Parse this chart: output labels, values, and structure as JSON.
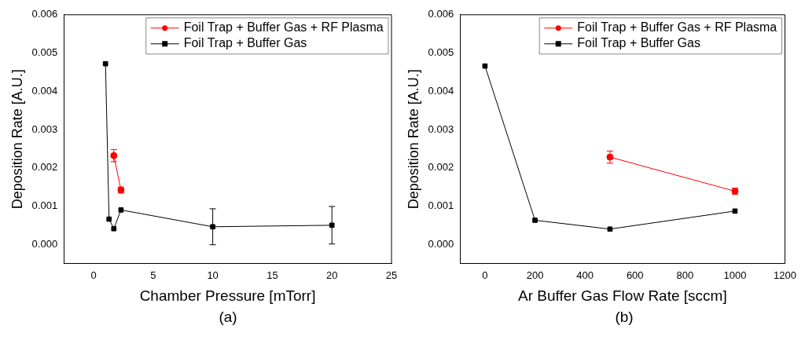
{
  "chart_data": [
    {
      "type": "line",
      "xlabel": "Chamber Pressure [mTorr]",
      "ylabel": "Deposition Rate [A.U.]",
      "xlim": [
        -2.5,
        25
      ],
      "xticks": [
        0,
        5,
        10,
        15,
        20,
        25
      ],
      "ylim": [
        -0.0005,
        0.006
      ],
      "yticks": [
        {
          "value": 0,
          "label": "0.000"
        },
        {
          "value": 0.001,
          "label": "0.001"
        },
        {
          "value": 0.002,
          "label": "0.002"
        },
        {
          "value": 0.003,
          "label": "0.003"
        },
        {
          "value": 0.004,
          "label": "0.004"
        },
        {
          "value": 0.005,
          "label": "0.005"
        },
        {
          "value": 0.006,
          "label": "0.006"
        }
      ],
      "legend": "top right",
      "grid": false,
      "annotations": [
        "(a)"
      ],
      "series": [
        {
          "name": "Foil Trap + Buffer Gas + RF Plasma",
          "color": "#ff0000",
          "marker": "circle",
          "x": [
            1.7,
            2.3
          ],
          "values": [
            0.00232,
            0.00142
          ],
          "errors": [
            0.00016,
            8e-05
          ]
        },
        {
          "name": "Foil Trap + Buffer Gas",
          "color": "#000000",
          "marker": "square",
          "x": [
            1.0,
            1.3,
            1.7,
            2.3,
            10,
            20
          ],
          "values": [
            0.00472,
            0.00066,
            0.00041,
            0.0009,
            0.00046,
            0.0005
          ],
          "errors": [
            null,
            null,
            null,
            null,
            0.00047,
            0.00049
          ]
        }
      ]
    },
    {
      "type": "line",
      "xlabel": "Ar Buffer Gas Flow Rate [sccm]",
      "ylabel": "Deposition Rate [A.U.]",
      "xlim": [
        -100,
        1200
      ],
      "xticks": [
        0,
        200,
        400,
        600,
        800,
        1000,
        1200
      ],
      "ylim": [
        -0.0005,
        0.006
      ],
      "yticks": [
        {
          "value": 0,
          "label": "0.000"
        },
        {
          "value": 0.001,
          "label": "0.001"
        },
        {
          "value": 0.002,
          "label": "0.002"
        },
        {
          "value": 0.003,
          "label": "0.003"
        },
        {
          "value": 0.004,
          "label": "0.004"
        },
        {
          "value": 0.005,
          "label": "0.005"
        },
        {
          "value": 0.006,
          "label": "0.006"
        }
      ],
      "legend": "top right",
      "grid": false,
      "annotations": [
        "(b)"
      ],
      "series": [
        {
          "name": "Foil Trap + Buffer Gas + RF Plasma",
          "color": "#ff0000",
          "marker": "circle",
          "x": [
            500,
            1000
          ],
          "values": [
            0.00228,
            0.00139
          ],
          "errors": [
            0.00016,
            8e-05
          ]
        },
        {
          "name": "Foil Trap + Buffer Gas",
          "color": "#000000",
          "marker": "square",
          "x": [
            0,
            200,
            500,
            1000
          ],
          "values": [
            0.00466,
            0.00063,
            0.0004,
            0.00087
          ],
          "errors": [
            null,
            null,
            null,
            null
          ]
        }
      ]
    }
  ]
}
